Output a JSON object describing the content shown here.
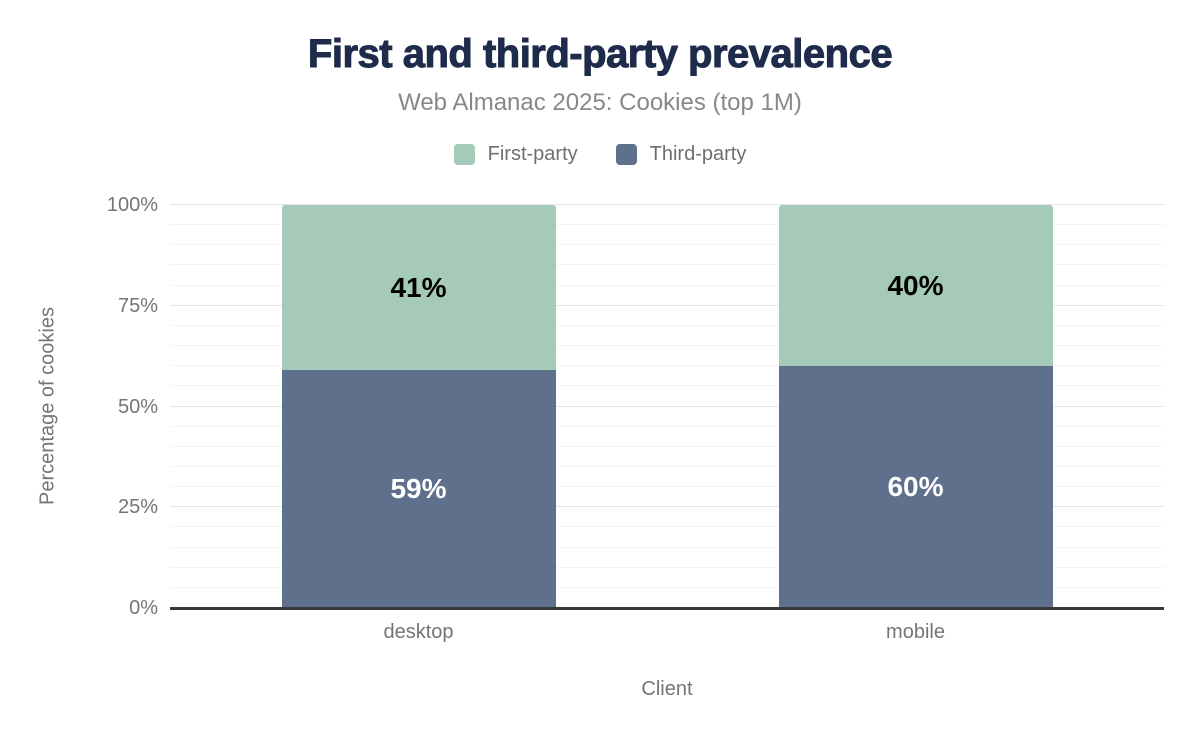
{
  "chart_data": {
    "type": "bar",
    "stacked": true,
    "title": "First and third-party prevalence",
    "subtitle": "Web Almanac 2025: Cookies (top 1M)",
    "categories": [
      "desktop",
      "mobile"
    ],
    "series": [
      {
        "name": "Third-party",
        "values": [
          59,
          60
        ],
        "color": "#5e708c",
        "label_color": "#ffffff"
      },
      {
        "name": "First-party",
        "values": [
          41,
          40
        ],
        "color": "#a6cab8",
        "label_color": "#000000"
      }
    ],
    "xlabel": "Client",
    "ylabel": "Percentage of cookies",
    "ylim": [
      0,
      100
    ],
    "yticks": [
      0,
      25,
      50,
      75,
      100
    ],
    "ytick_suffix": "%",
    "value_suffix": "%",
    "minor_grid_step": 5,
    "major_grid_step": 25,
    "grid": true,
    "legend_position": "top"
  },
  "legend": {
    "items": [
      {
        "label": "First-party",
        "color": "#a6cab8"
      },
      {
        "label": "Third-party",
        "color": "#5e708c"
      }
    ]
  },
  "colors": {
    "title": "#1e2b4a",
    "subtitle": "#888888",
    "axis_text": "#757575",
    "legend_text": "#6e6e6e",
    "axis_line": "#37383a",
    "grid_minor": "#f4f4f4",
    "grid_major": "#e4e4e4",
    "background": "#ffffff"
  }
}
